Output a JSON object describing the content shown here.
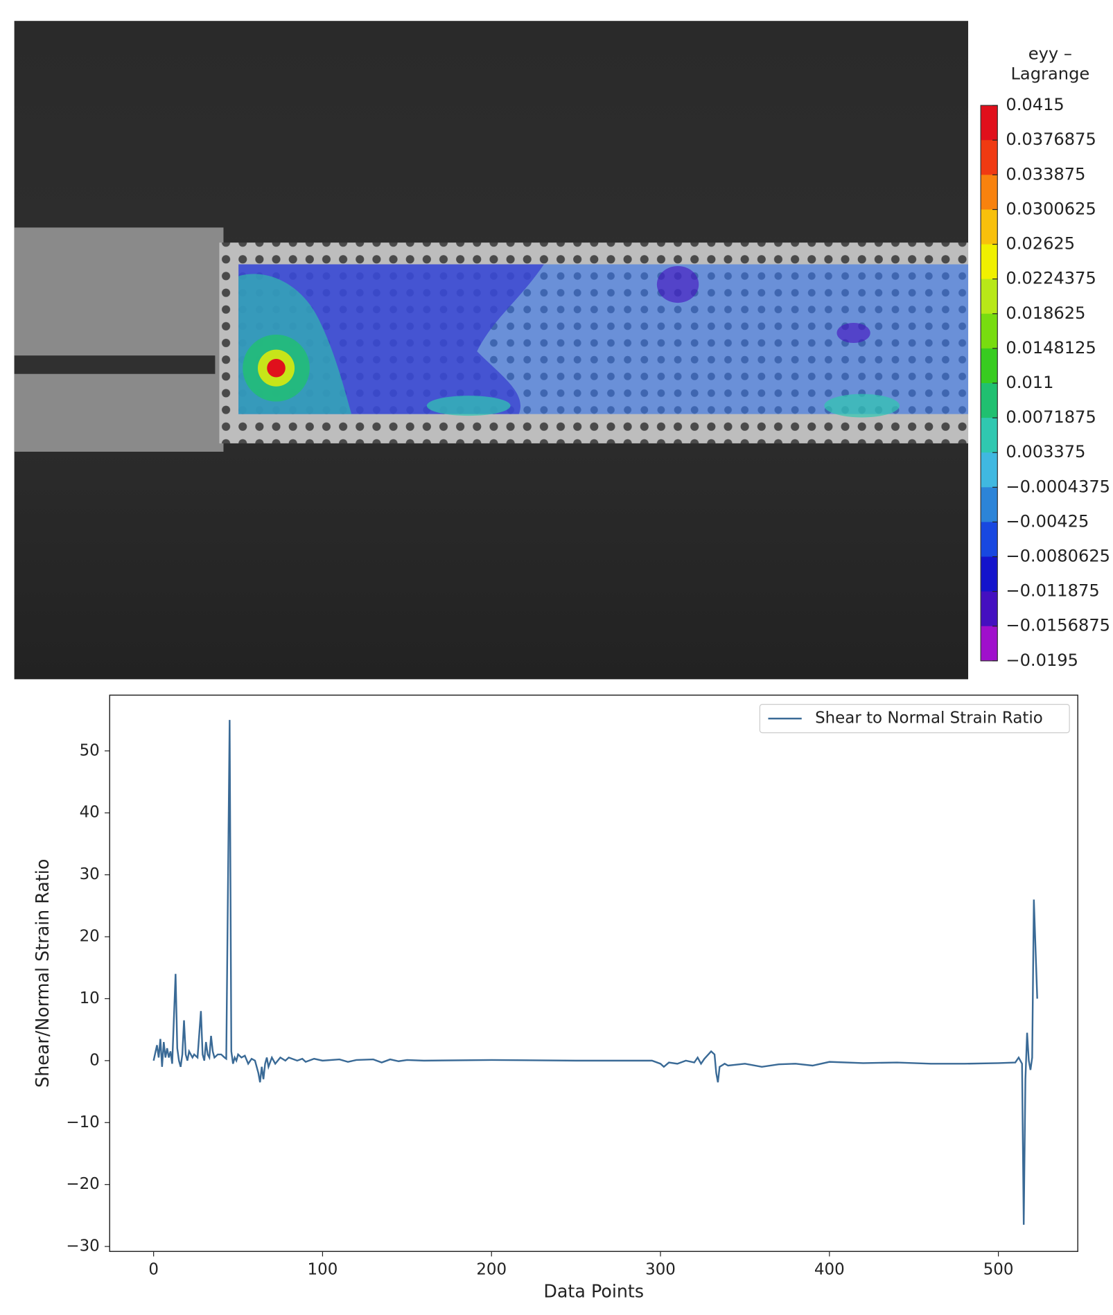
{
  "chart_data": [
    {
      "type": "contour",
      "title": "eyy – Lagrange",
      "zlim": [
        -0.0195,
        0.0415
      ],
      "zticks": [
        0.0415,
        0.0376875,
        0.033875,
        0.0300625,
        0.02625,
        0.0224375,
        0.018625,
        0.0148125,
        0.011,
        0.0071875,
        0.003375,
        {
          "value": -0.0004375,
          "label": "−0.0004375"
        },
        {
          "value": -0.00425,
          "label": "−0.00425"
        },
        {
          "value": -0.0080625,
          "label": "−0.0080625"
        },
        {
          "value": -0.011875,
          "label": "−0.011875"
        },
        {
          "value": -0.0156875,
          "label": "−0.0156875"
        },
        {
          "value": -0.0195,
          "label": "−0.0195"
        }
      ],
      "colors": [
        "#e0101c",
        "#f03a12",
        "#f8820e",
        "#f8c00c",
        "#f0f000",
        "#b8e818",
        "#78dc10",
        "#38cc20",
        "#20c070",
        "#30c8b0",
        "#40b8e0",
        "#2c84d8",
        "#1848e0",
        "#1414cc",
        "#4410c0",
        "#a010cc"
      ]
    },
    {
      "type": "line",
      "xlabel": "Data Points",
      "ylabel": "Shear/Normal Strain Ratio",
      "xlim": [
        -26,
        547
      ],
      "ylim": [
        -30.8,
        59.0
      ],
      "xticks": [
        0,
        100,
        200,
        300,
        400,
        500
      ],
      "yticks": [
        {
          "value": -30,
          "label": "−30"
        },
        {
          "value": -20,
          "label": "−20"
        },
        {
          "value": -10,
          "label": "−10"
        },
        0,
        10,
        20,
        30,
        40,
        50
      ],
      "legend": "upper right",
      "x": [
        0,
        2,
        3,
        4,
        5,
        6,
        7,
        8,
        9,
        10,
        11,
        13,
        14,
        15,
        16,
        17,
        18,
        19,
        20,
        21,
        23,
        24,
        26,
        28,
        29,
        30,
        31,
        32,
        33,
        34,
        35,
        36,
        38,
        40,
        42,
        43,
        45,
        46,
        47,
        48,
        49,
        50,
        52,
        54,
        56,
        58,
        60,
        62,
        63,
        64,
        65,
        66,
        67,
        68,
        70,
        72,
        75,
        78,
        80,
        85,
        88,
        90,
        95,
        100,
        110,
        115,
        120,
        130,
        135,
        140,
        145,
        150,
        160,
        200,
        250,
        295,
        300,
        302,
        305,
        310,
        315,
        320,
        322,
        324,
        326,
        330,
        332,
        333,
        334,
        335,
        338,
        340,
        350,
        360,
        370,
        380,
        390,
        400,
        420,
        440,
        460,
        480,
        500,
        510,
        512,
        514,
        515,
        516,
        517,
        518,
        519,
        520,
        521,
        523
      ],
      "series": [
        {
          "name": "Shear to Normal Strain Ratio",
          "color": "#3a6a96",
          "values": [
            0,
            2.5,
            0.5,
            3.5,
            -1,
            3,
            0.5,
            2,
            0.5,
            1.5,
            -0.5,
            14,
            2,
            0,
            -1,
            1,
            6.5,
            1,
            0,
            1.5,
            0.5,
            1,
            0.5,
            8,
            1,
            0,
            3,
            1,
            0.5,
            4,
            1.5,
            0.5,
            1,
            1,
            0.5,
            0.3,
            55,
            1.5,
            -0.5,
            0.5,
            0,
            1,
            0.5,
            0.8,
            -0.5,
            0.3,
            0,
            -2,
            -3.5,
            -1,
            -3,
            -0.5,
            0.5,
            -1,
            0.5,
            -0.5,
            0.5,
            0,
            0.5,
            0,
            0.3,
            -0.2,
            0.3,
            0,
            0.2,
            -0.2,
            0.1,
            0.2,
            -0.3,
            0.2,
            -0.1,
            0.1,
            0,
            0.1,
            0,
            0,
            -0.5,
            -1,
            -0.3,
            -0.5,
            0,
            -0.3,
            0.5,
            -0.5,
            0.3,
            1.5,
            1,
            -2,
            -3.5,
            -1,
            -0.5,
            -0.8,
            -0.5,
            -1,
            -0.6,
            -0.5,
            -0.8,
            -0.2,
            -0.4,
            -0.3,
            -0.5,
            -0.5,
            -0.4,
            -0.3,
            0.5,
            -0.5,
            -26.5,
            -3,
            4.5,
            0,
            -1.5,
            0.5,
            26,
            10
          ]
        }
      ]
    }
  ]
}
